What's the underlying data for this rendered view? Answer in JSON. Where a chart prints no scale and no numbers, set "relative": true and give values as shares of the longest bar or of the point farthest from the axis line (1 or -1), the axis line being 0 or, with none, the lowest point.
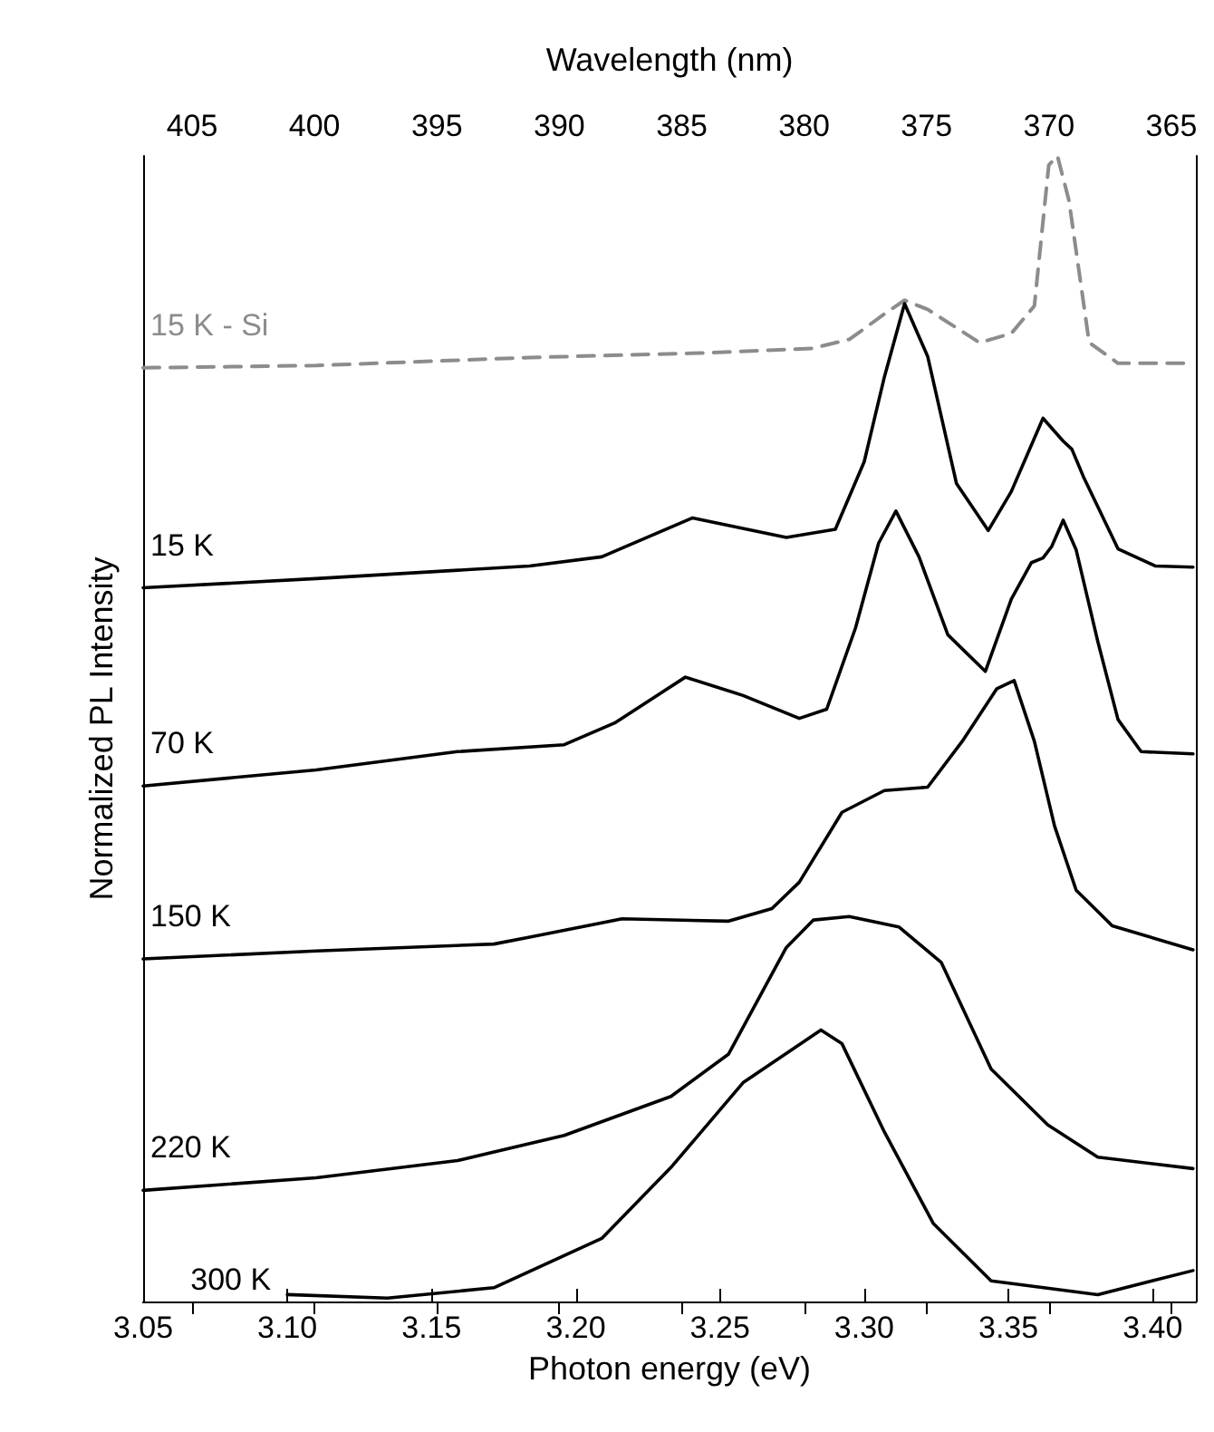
{
  "chart_data": {
    "type": "line",
    "relative": true,
    "xlabel": "Photon energy (eV)",
    "ylabel": "Normalized PL Intensity",
    "x2label": "Wavelength (nm)",
    "xlim": [
      3.05,
      3.415
    ],
    "xticks": [
      3.05,
      {
        "value": 3.1,
        "label": "3.10"
      },
      3.15,
      {
        "value": 3.2,
        "label": "3.20"
      },
      3.25,
      {
        "value": 3.3,
        "label": "3.30"
      },
      3.35,
      {
        "value": 3.4,
        "label": "3.40"
      }
    ],
    "x2lim": [
      407,
      364
    ],
    "x2ticks": [
      405,
      400,
      395,
      390,
      385,
      380,
      375,
      370,
      365
    ],
    "grid": false,
    "legend": false,
    "marker": "none",
    "line_style": "solid",
    "series": [
      {
        "name": "15 K - Si",
        "color": "#8c8c8c",
        "line_style": "dashed",
        "x": [
          3.05,
          3.11,
          3.184,
          3.245,
          3.282,
          3.295,
          3.307,
          3.314,
          3.322,
          3.34,
          3.351,
          3.359,
          3.364,
          3.367,
          3.371,
          3.378,
          3.388,
          3.414
        ],
        "values": [
          0.815,
          0.817,
          0.824,
          0.828,
          0.832,
          0.84,
          0.862,
          0.874,
          0.866,
          0.837,
          0.845,
          0.869,
          0.992,
          1.0,
          0.961,
          0.837,
          0.819,
          0.819
        ]
      },
      {
        "name": "15 K",
        "color": "#000000",
        "x": [
          3.05,
          3.11,
          3.184,
          3.209,
          3.2405,
          3.273,
          3.29,
          3.3,
          3.307,
          3.314,
          3.322,
          3.332,
          3.343,
          3.351,
          3.362,
          3.369,
          3.372,
          3.376,
          3.388,
          3.401,
          3.414
        ],
        "values": [
          0.623,
          0.631,
          0.642,
          0.65,
          0.684,
          0.667,
          0.674,
          0.733,
          0.807,
          0.871,
          0.825,
          0.714,
          0.673,
          0.707,
          0.771,
          0.751,
          0.744,
          0.72,
          0.657,
          0.642,
          0.641
        ]
      },
      {
        "name": "70 K",
        "color": "#000000",
        "x": [
          3.05,
          3.11,
          3.159,
          3.196,
          3.2135,
          3.238,
          3.258,
          3.2775,
          3.287,
          3.297,
          3.305,
          3.311,
          3.319,
          3.329,
          3.342,
          3.351,
          3.358,
          3.362,
          3.365,
          3.369,
          3.3735,
          3.381,
          3.388,
          3.396,
          3.414
        ],
        "values": [
          0.45,
          0.464,
          0.48,
          0.486,
          0.505,
          0.545,
          0.529,
          0.509,
          0.517,
          0.588,
          0.662,
          0.69,
          0.65,
          0.582,
          0.55,
          0.613,
          0.645,
          0.649,
          0.659,
          0.682,
          0.656,
          0.576,
          0.508,
          0.48,
          0.478
        ]
      },
      {
        "name": "150 K",
        "color": "#000000",
        "x": [
          3.05,
          3.11,
          3.1716,
          3.184,
          3.216,
          3.253,
          3.268,
          3.2775,
          3.2923,
          3.307,
          3.322,
          3.334,
          3.346,
          3.352,
          3.359,
          3.366,
          3.3735,
          3.386,
          3.414
        ],
        "values": [
          0.299,
          0.306,
          0.312,
          0.318,
          0.334,
          0.332,
          0.343,
          0.366,
          0.427,
          0.446,
          0.449,
          0.489,
          0.535,
          0.542,
          0.489,
          0.415,
          0.359,
          0.328,
          0.307
        ]
      },
      {
        "name": "220 K",
        "color": "#000000",
        "x": [
          3.05,
          3.11,
          3.159,
          3.196,
          3.233,
          3.253,
          3.273,
          3.2824,
          3.2948,
          3.312,
          3.3267,
          3.344,
          3.3637,
          3.381,
          3.414
        ],
        "values": [
          0.097,
          0.108,
          0.123,
          0.145,
          0.179,
          0.216,
          0.309,
          0.333,
          0.336,
          0.327,
          0.296,
          0.203,
          0.154,
          0.126,
          0.116
        ]
      },
      {
        "name": "300 K",
        "color": "#000000",
        "x": [
          3.1,
          3.1347,
          3.1716,
          3.209,
          3.233,
          3.258,
          3.285,
          3.2923,
          3.307,
          3.324,
          3.344,
          3.381,
          3.414
        ],
        "values": [
          0.006,
          0.003,
          0.012,
          0.055,
          0.117,
          0.191,
          0.237,
          0.225,
          0.148,
          0.068,
          0.018,
          0.006,
          0.027
        ]
      }
    ]
  }
}
